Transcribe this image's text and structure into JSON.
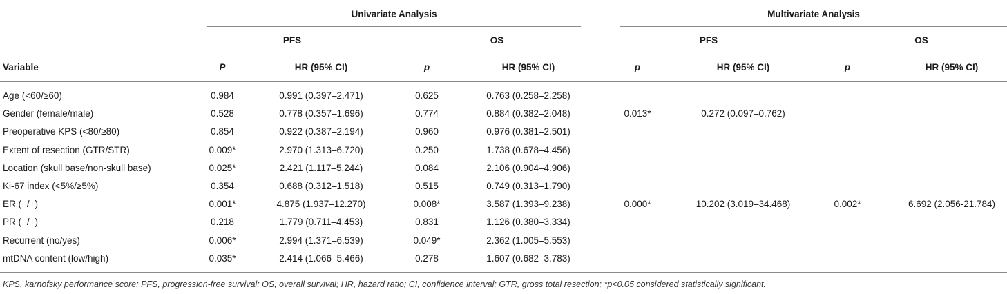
{
  "groups": {
    "univariate": "Univariate Analysis",
    "multivariate": "Multivariate Analysis"
  },
  "subgroups": {
    "u_pfs": "PFS",
    "u_os": "OS",
    "m_pfs": "PFS",
    "m_os": "OS"
  },
  "columns": {
    "variable": "Variable",
    "u_pfs_p": "P",
    "u_pfs_hr": "HR (95% CI)",
    "u_os_p": "p",
    "u_os_hr": "HR (95% CI)",
    "m_pfs_p": "p",
    "m_pfs_hr": "HR (95% CI)",
    "m_os_p": "p",
    "m_os_hr": "HR (95% CI)"
  },
  "rows": [
    {
      "variable": "Age (<60/≥60)",
      "u_pfs_p": "0.984",
      "u_pfs_hr": "0.991 (0.397–2.471)",
      "u_os_p": "0.625",
      "u_os_hr": "0.763 (0.258–2.258)",
      "m_pfs_p": "",
      "m_pfs_hr": "",
      "m_os_p": "",
      "m_os_hr": ""
    },
    {
      "variable": "Gender (female/male)",
      "u_pfs_p": "0.528",
      "u_pfs_hr": "0.778 (0.357–1.696)",
      "u_os_p": "0.774",
      "u_os_hr": "0.884 (0.382–2.048)",
      "m_pfs_p": "0.013*",
      "m_pfs_hr": "0.272 (0.097–0.762)",
      "m_os_p": "",
      "m_os_hr": ""
    },
    {
      "variable": "Preoperative KPS (<80/≥80)",
      "u_pfs_p": "0.854",
      "u_pfs_hr": "0.922 (0.387–2.194)",
      "u_os_p": "0.960",
      "u_os_hr": "0.976 (0.381–2.501)",
      "m_pfs_p": "",
      "m_pfs_hr": "",
      "m_os_p": "",
      "m_os_hr": ""
    },
    {
      "variable": "Extent of resection (GTR/STR)",
      "u_pfs_p": "0.009*",
      "u_pfs_hr": "2.970 (1.313–6.720)",
      "u_os_p": "0.250",
      "u_os_hr": "1.738 (0.678–4.456)",
      "m_pfs_p": "",
      "m_pfs_hr": "",
      "m_os_p": "",
      "m_os_hr": ""
    },
    {
      "variable": "Location (skull base/non-skull base)",
      "u_pfs_p": "0.025*",
      "u_pfs_hr": "2.421 (1.117–5.244)",
      "u_os_p": "0.084",
      "u_os_hr": "2.106 (0.904–4.906)",
      "m_pfs_p": "",
      "m_pfs_hr": "",
      "m_os_p": "",
      "m_os_hr": ""
    },
    {
      "variable": "Ki-67 index (<5%/≥5%)",
      "u_pfs_p": "0.354",
      "u_pfs_hr": "0.688 (0.312–1.518)",
      "u_os_p": "0.515",
      "u_os_hr": "0.749 (0.313–1.790)",
      "m_pfs_p": "",
      "m_pfs_hr": "",
      "m_os_p": "",
      "m_os_hr": ""
    },
    {
      "variable": "ER (−/+)",
      "u_pfs_p": "0.001*",
      "u_pfs_hr": "4.875 (1.937–12.270)",
      "u_os_p": "0.008*",
      "u_os_hr": "3.587 (1.393–9.238)",
      "m_pfs_p": "0.000*",
      "m_pfs_hr": "10.202 (3.019–34.468)",
      "m_os_p": "0.002*",
      "m_os_hr": "6.692 (2.056-21.784)"
    },
    {
      "variable": "PR (−/+)",
      "u_pfs_p": "0.218",
      "u_pfs_hr": "1.779 (0.711–4.453)",
      "u_os_p": "0.831",
      "u_os_hr": "1.126 (0.380–3.334)",
      "m_pfs_p": "",
      "m_pfs_hr": "",
      "m_os_p": "",
      "m_os_hr": ""
    },
    {
      "variable": "Recurrent (no/yes)",
      "u_pfs_p": "0.006*",
      "u_pfs_hr": "2.994 (1.371–6.539)",
      "u_os_p": "0.049*",
      "u_os_hr": "2.362 (1.005–5.553)",
      "m_pfs_p": "",
      "m_pfs_hr": "",
      "m_os_p": "",
      "m_os_hr": ""
    },
    {
      "variable": "mtDNA content (low/high)",
      "u_pfs_p": "0.035*",
      "u_pfs_hr": "2.414 (1.066–5.466)",
      "u_os_p": "0.278",
      "u_os_hr": "1.607 (0.682–3.783)",
      "m_pfs_p": "",
      "m_pfs_hr": "",
      "m_os_p": "",
      "m_os_hr": ""
    }
  ],
  "footnote": "KPS, karnofsky performance score; PFS, progression-free survival; OS, overall survival; HR, hazard ratio; CI, confidence interval; GTR, gross total resection; *p<0.05 considered statistically significant."
}
